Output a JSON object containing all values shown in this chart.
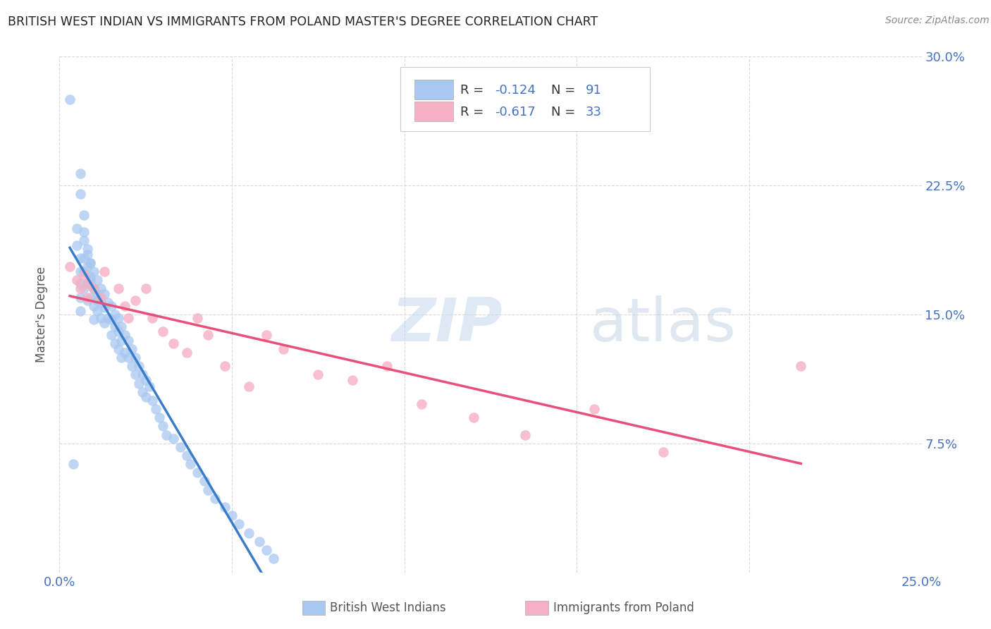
{
  "title": "BRITISH WEST INDIAN VS IMMIGRANTS FROM POLAND MASTER'S DEGREE CORRELATION CHART",
  "source": "Source: ZipAtlas.com",
  "ylabel": "Master's Degree",
  "xlim": [
    0.0,
    0.25
  ],
  "ylim": [
    0.0,
    0.3
  ],
  "blue_color": "#a8c8f0",
  "pink_color": "#f5b0c5",
  "blue_line_color": "#3a7cc7",
  "pink_line_color": "#e8507a",
  "dashed_color": "#b0c8e8",
  "watermark_zip": "ZIP",
  "watermark_atlas": "atlas",
  "legend_label_blue": "British West Indians",
  "legend_label_pink": "Immigrants from Poland",
  "blue_x": [
    0.003,
    0.004,
    0.005,
    0.005,
    0.006,
    0.006,
    0.006,
    0.006,
    0.006,
    0.007,
    0.007,
    0.007,
    0.007,
    0.008,
    0.008,
    0.008,
    0.008,
    0.009,
    0.009,
    0.009,
    0.01,
    0.01,
    0.01,
    0.01,
    0.011,
    0.011,
    0.011,
    0.012,
    0.012,
    0.012,
    0.013,
    0.013,
    0.013,
    0.014,
    0.014,
    0.015,
    0.015,
    0.015,
    0.016,
    0.016,
    0.016,
    0.017,
    0.017,
    0.017,
    0.018,
    0.018,
    0.018,
    0.019,
    0.019,
    0.02,
    0.02,
    0.021,
    0.021,
    0.022,
    0.022,
    0.023,
    0.023,
    0.024,
    0.024,
    0.025,
    0.025,
    0.026,
    0.027,
    0.028,
    0.029,
    0.03,
    0.031,
    0.033,
    0.035,
    0.037,
    0.038,
    0.04,
    0.042,
    0.043,
    0.045,
    0.048,
    0.05,
    0.052,
    0.055,
    0.058,
    0.06,
    0.062,
    0.006,
    0.006,
    0.007,
    0.007,
    0.008,
    0.009,
    0.009,
    0.01,
    0.011
  ],
  "blue_y": [
    0.275,
    0.063,
    0.2,
    0.19,
    0.183,
    0.175,
    0.168,
    0.16,
    0.152,
    0.193,
    0.183,
    0.175,
    0.165,
    0.185,
    0.178,
    0.168,
    0.158,
    0.18,
    0.17,
    0.16,
    0.175,
    0.165,
    0.155,
    0.147,
    0.17,
    0.162,
    0.152,
    0.165,
    0.157,
    0.148,
    0.162,
    0.154,
    0.145,
    0.157,
    0.148,
    0.155,
    0.147,
    0.138,
    0.15,
    0.143,
    0.133,
    0.148,
    0.14,
    0.13,
    0.143,
    0.135,
    0.125,
    0.138,
    0.128,
    0.135,
    0.125,
    0.13,
    0.12,
    0.125,
    0.115,
    0.12,
    0.11,
    0.115,
    0.105,
    0.112,
    0.102,
    0.108,
    0.1,
    0.095,
    0.09,
    0.085,
    0.08,
    0.078,
    0.073,
    0.068,
    0.063,
    0.058,
    0.053,
    0.048,
    0.043,
    0.038,
    0.033,
    0.028,
    0.023,
    0.018,
    0.013,
    0.008,
    0.232,
    0.22,
    0.208,
    0.198,
    0.188,
    0.18,
    0.172,
    0.165,
    0.158
  ],
  "pink_x": [
    0.003,
    0.005,
    0.006,
    0.007,
    0.008,
    0.008,
    0.01,
    0.012,
    0.013,
    0.017,
    0.019,
    0.02,
    0.022,
    0.025,
    0.027,
    0.03,
    0.033,
    0.037,
    0.04,
    0.043,
    0.048,
    0.055,
    0.06,
    0.065,
    0.075,
    0.085,
    0.095,
    0.105,
    0.12,
    0.135,
    0.155,
    0.175,
    0.215
  ],
  "pink_y": [
    0.178,
    0.17,
    0.165,
    0.173,
    0.168,
    0.16,
    0.165,
    0.16,
    0.175,
    0.165,
    0.155,
    0.148,
    0.158,
    0.165,
    0.148,
    0.14,
    0.133,
    0.128,
    0.148,
    0.138,
    0.12,
    0.108,
    0.138,
    0.13,
    0.115,
    0.112,
    0.12,
    0.098,
    0.09,
    0.08,
    0.095,
    0.07,
    0.12
  ]
}
